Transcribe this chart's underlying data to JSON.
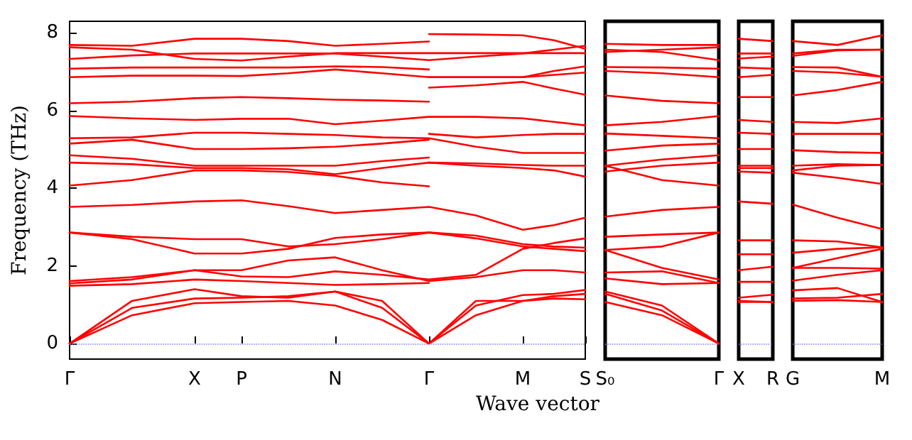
{
  "chart_data": [
    {
      "type": "line",
      "xlabel": "Wave vector",
      "ylabel": "Frequency (THz)",
      "color": "#ff0000",
      "line_style": "solid",
      "ylim": [
        -0.4,
        8.3
      ],
      "yticks": [
        0,
        2,
        4,
        6,
        8
      ],
      "categories": [
        "Γ",
        null,
        null,
        null,
        null,
        null,
        null,
        null,
        "X",
        null,
        null,
        "P",
        null,
        null,
        null,
        null,
        null,
        "N",
        null,
        null,
        null,
        null,
        null,
        "Γ",
        null,
        null,
        null,
        null,
        null,
        "M",
        null,
        null,
        null,
        "S"
      ],
      "ref_lines": [
        {
          "axis": "y",
          "value": 0,
          "color": "#8080ff",
          "line_style": "dotted"
        }
      ],
      "series": [
        {
          "values": [
            7.69,
            null,
            null,
            null,
            7.67,
            null,
            null,
            null,
            7.85,
            null,
            null,
            7.85,
            null,
            null,
            7.79,
            null,
            null,
            7.67,
            null,
            null,
            7.72,
            null,
            null,
            7.78,
            null,
            null,
            null,
            null,
            null,
            null,
            null,
            null,
            null,
            null
          ]
        },
        {
          "values": [
            7.63,
            null,
            null,
            null,
            7.57,
            null,
            null,
            null,
            7.33,
            null,
            null,
            7.29,
            null,
            null,
            7.39,
            null,
            null,
            7.48,
            null,
            null,
            7.48,
            null,
            null,
            7.48,
            null,
            null,
            7.48,
            null,
            null,
            7.48,
            null,
            7.48,
            null,
            7.48
          ]
        },
        {
          "values": [
            7.33,
            null,
            null,
            null,
            7.42,
            null,
            null,
            null,
            7.47,
            null,
            null,
            7.47,
            null,
            null,
            7.47,
            null,
            null,
            7.47,
            null,
            null,
            7.39,
            null,
            null,
            7.3,
            null,
            null,
            7.39,
            null,
            null,
            7.47,
            null,
            7.57,
            null,
            7.67
          ]
        },
        {
          "values": [
            7.08,
            null,
            null,
            null,
            7.11,
            null,
            null,
            null,
            7.11,
            null,
            null,
            7.11,
            null,
            null,
            7.11,
            null,
            null,
            7.14,
            null,
            null,
            7.12,
            null,
            null,
            7.06,
            null,
            null,
            null,
            null,
            null,
            null,
            null,
            null,
            null,
            null
          ]
        },
        {
          "values": [
            6.86,
            null,
            null,
            null,
            6.9,
            null,
            null,
            null,
            6.9,
            null,
            null,
            6.89,
            null,
            null,
            6.96,
            null,
            null,
            7.06,
            null,
            null,
            6.96,
            null,
            null,
            6.86,
            null,
            null,
            6.86,
            null,
            null,
            6.86,
            null,
            7.02,
            null,
            7.14
          ]
        },
        {
          "values": [
            6.19,
            null,
            null,
            null,
            6.23,
            null,
            null,
            null,
            6.32,
            null,
            null,
            6.35,
            null,
            null,
            6.32,
            null,
            null,
            6.28,
            null,
            null,
            6.26,
            null,
            null,
            6.23,
            null,
            null,
            null,
            null,
            null,
            null,
            null,
            null,
            null,
            null
          ]
        },
        {
          "values": [
            5.86,
            null,
            null,
            null,
            5.8,
            null,
            null,
            null,
            5.76,
            null,
            null,
            5.79,
            null,
            null,
            5.79,
            null,
            null,
            5.65,
            null,
            null,
            5.74,
            null,
            null,
            5.84,
            null,
            null,
            5.84,
            null,
            null,
            5.8,
            null,
            5.71,
            null,
            5.62
          ]
        },
        {
          "values": [
            5.29,
            null,
            null,
            null,
            5.31,
            null,
            null,
            null,
            5.43,
            null,
            null,
            5.43,
            null,
            null,
            5.4,
            null,
            null,
            5.37,
            null,
            null,
            5.31,
            null,
            null,
            5.29,
            null,
            null,
            5.07,
            null,
            null,
            4.91,
            null,
            4.91,
            null,
            4.91
          ]
        },
        {
          "values": [
            5.15,
            null,
            null,
            null,
            5.25,
            null,
            null,
            null,
            5.01,
            null,
            null,
            5.01,
            null,
            null,
            5.03,
            null,
            null,
            5.07,
            null,
            null,
            5.15,
            null,
            null,
            5.25,
            null,
            null,
            null,
            null,
            null,
            null,
            null,
            null,
            null,
            null
          ]
        },
        {
          "values": [
            4.85,
            null,
            null,
            null,
            4.76,
            null,
            null,
            null,
            4.58,
            null,
            null,
            4.58,
            null,
            null,
            4.58,
            null,
            null,
            4.58,
            null,
            null,
            4.7,
            null,
            null,
            4.79,
            null,
            null,
            null,
            null,
            null,
            null,
            null,
            null,
            null,
            null
          ]
        },
        {
          "values": [
            4.66,
            null,
            null,
            null,
            4.62,
            null,
            null,
            null,
            4.52,
            null,
            null,
            4.52,
            null,
            null,
            4.49,
            null,
            null,
            4.36,
            null,
            null,
            4.52,
            null,
            null,
            4.66,
            null,
            null,
            4.64,
            null,
            null,
            4.6,
            null,
            4.58,
            null,
            4.58
          ]
        },
        {
          "values": [
            4.07,
            null,
            null,
            null,
            4.21,
            null,
            null,
            null,
            4.46,
            null,
            null,
            4.46,
            null,
            null,
            4.42,
            null,
            null,
            4.32,
            null,
            null,
            4.15,
            null,
            null,
            4.05,
            null,
            null,
            null,
            null,
            null,
            null,
            null,
            null,
            null,
            null
          ]
        },
        {
          "values": [
            3.52,
            null,
            null,
            null,
            3.57,
            null,
            null,
            null,
            3.66,
            null,
            null,
            3.69,
            null,
            null,
            3.54,
            null,
            null,
            3.36,
            null,
            null,
            3.44,
            null,
            null,
            3.52,
            null,
            null,
            3.3,
            null,
            null,
            2.93,
            null,
            3.05,
            null,
            3.24
          ]
        },
        {
          "values": [
            2.86,
            null,
            null,
            null,
            2.75,
            null,
            null,
            null,
            2.69,
            null,
            null,
            2.69,
            null,
            null,
            2.5,
            null,
            null,
            2.56,
            null,
            null,
            2.69,
            null,
            null,
            2.86,
            null,
            null,
            2.71,
            null,
            null,
            2.5,
            null,
            2.44,
            null,
            2.38
          ]
        },
        {
          "values": [
            2.86,
            null,
            null,
            null,
            2.69,
            null,
            null,
            null,
            2.32,
            null,
            null,
            2.32,
            null,
            null,
            2.44,
            null,
            null,
            2.72,
            null,
            null,
            2.81,
            null,
            null,
            2.86,
            null,
            null,
            2.78,
            null,
            null,
            2.56,
            null,
            2.5,
            null,
            2.47
          ]
        },
        {
          "values": [
            1.61,
            null,
            null,
            null,
            1.71,
            null,
            null,
            null,
            1.89,
            null,
            null,
            1.89,
            null,
            null,
            2.14,
            null,
            null,
            2.22,
            null,
            null,
            1.89,
            null,
            null,
            1.61,
            null,
            null,
            1.71,
            null,
            null,
            1.89,
            null,
            1.89,
            null,
            1.83
          ]
        },
        {
          "values": [
            1.55,
            null,
            null,
            null,
            1.65,
            null,
            null,
            null,
            1.89,
            null,
            null,
            1.73,
            null,
            null,
            1.71,
            null,
            null,
            1.86,
            null,
            null,
            1.77,
            null,
            null,
            1.65,
            null,
            null,
            1.77,
            null,
            null,
            2.44,
            null,
            2.59,
            null,
            2.71
          ]
        },
        {
          "values": [
            1.49,
            null,
            null,
            null,
            1.53,
            null,
            null,
            null,
            1.65,
            null,
            null,
            1.61,
            null,
            null,
            1.56,
            null,
            null,
            1.51,
            null,
            null,
            1.53,
            null,
            null,
            1.56,
            null,
            null,
            null,
            null,
            null,
            null,
            null,
            null,
            null,
            null
          ]
        },
        {
          "values": [
            0,
            null,
            null,
            null,
            1.1,
            null,
            null,
            null,
            1.4,
            null,
            null,
            1.22,
            null,
            null,
            1.18,
            null,
            null,
            1.34,
            null,
            null,
            1.1,
            null,
            null,
            0,
            null,
            null,
            0.98,
            null,
            null,
            1.25,
            null,
            1.28,
            null,
            1.38
          ]
        },
        {
          "values": [
            0,
            null,
            null,
            null,
            0.92,
            null,
            null,
            null,
            1.16,
            null,
            null,
            1.18,
            null,
            null,
            1.22,
            null,
            null,
            1.34,
            null,
            null,
            0.92,
            null,
            null,
            0,
            null,
            null,
            1.1,
            null,
            null,
            1.1,
            null,
            1.16,
            null,
            1.14
          ]
        },
        {
          "values": [
            0,
            null,
            null,
            null,
            0.73,
            null,
            null,
            null,
            1.04,
            null,
            null,
            1.07,
            null,
            null,
            1.1,
            null,
            null,
            0.98,
            null,
            null,
            0.61,
            null,
            null,
            0,
            null,
            null,
            0.73,
            null,
            null,
            1.1,
            null,
            1.22,
            null,
            1.28
          ]
        },
        {
          "values": [
            null,
            null,
            null,
            null,
            null,
            null,
            null,
            null,
            null,
            null,
            null,
            null,
            null,
            null,
            null,
            null,
            null,
            null,
            null,
            null,
            null,
            null,
            null,
            7.97,
            null,
            null,
            7.96,
            null,
            null,
            7.94,
            null,
            7.81,
            null,
            7.59
          ]
        },
        {
          "values": [
            null,
            null,
            null,
            null,
            null,
            null,
            null,
            null,
            null,
            null,
            null,
            null,
            null,
            null,
            null,
            null,
            null,
            null,
            null,
            null,
            null,
            null,
            null,
            6.86,
            null,
            null,
            6.86,
            null,
            null,
            6.86,
            null,
            6.92,
            null,
            6.98
          ]
        },
        {
          "values": [
            null,
            null,
            null,
            null,
            null,
            null,
            null,
            null,
            null,
            null,
            null,
            null,
            null,
            null,
            null,
            null,
            null,
            null,
            null,
            null,
            null,
            null,
            null,
            6.59,
            null,
            null,
            6.65,
            null,
            null,
            6.74,
            null,
            6.57,
            null,
            6.41
          ]
        },
        {
          "values": [
            null,
            null,
            null,
            null,
            null,
            null,
            null,
            null,
            null,
            null,
            null,
            null,
            null,
            null,
            null,
            null,
            null,
            null,
            null,
            null,
            null,
            null,
            null,
            5.4,
            null,
            null,
            5.31,
            null,
            null,
            5.37,
            null,
            5.4,
            null,
            5.4
          ]
        },
        {
          "values": [
            null,
            null,
            null,
            null,
            null,
            null,
            null,
            null,
            null,
            null,
            null,
            null,
            null,
            null,
            null,
            null,
            null,
            null,
            null,
            null,
            null,
            null,
            null,
            4.66,
            null,
            null,
            4.58,
            null,
            null,
            4.52,
            null,
            4.46,
            null,
            4.3
          ]
        }
      ]
    },
    {
      "type": "line",
      "color": "#ff0000",
      "line_style": "solid",
      "tick_labels": "x",
      "ylim": [
        -0.4,
        8.3
      ],
      "yticks": [
        0,
        2,
        4,
        6,
        8
      ],
      "categories": [
        "S₀",
        null,
        "Γ"
      ],
      "ref_lines": [
        {
          "axis": "y",
          "value": 0,
          "color": "#8080ff",
          "line_style": "dotted"
        }
      ],
      "series": [
        {
          "values": [
            7.72,
            7.69,
            7.69
          ]
        },
        {
          "values": [
            7.57,
            7.51,
            7.3
          ]
        },
        {
          "values": [
            7.51,
            7.57,
            7.63
          ]
        },
        {
          "values": [
            7.12,
            7.11,
            7.08
          ]
        },
        {
          "values": [
            7.02,
            6.96,
            6.86
          ]
        },
        {
          "values": [
            6.39,
            6.25,
            6.19
          ]
        },
        {
          "values": [
            5.62,
            5.71,
            5.86
          ]
        },
        {
          "values": [
            5.41,
            5.35,
            5.29
          ]
        },
        {
          "values": [
            4.97,
            5.1,
            5.15
          ]
        },
        {
          "values": [
            4.58,
            4.74,
            4.85
          ]
        },
        {
          "values": [
            4.43,
            4.58,
            4.66
          ]
        },
        {
          "values": [
            4.58,
            4.21,
            4.07
          ]
        },
        {
          "values": [
            3.27,
            3.44,
            3.52
          ]
        },
        {
          "values": [
            2.75,
            2.81,
            2.86
          ]
        },
        {
          "values": [
            2.41,
            2.5,
            2.86
          ]
        },
        {
          "values": [
            2.41,
            1.95,
            1.65
          ]
        },
        {
          "values": [
            1.83,
            1.86,
            1.56
          ]
        },
        {
          "values": [
            1.68,
            1.53,
            1.56
          ]
        },
        {
          "values": [
            1.34,
            0.98,
            0
          ]
        },
        {
          "values": [
            1.07,
            0.73,
            0
          ]
        },
        {
          "values": [
            1.28,
            0.85,
            0
          ]
        }
      ]
    },
    {
      "type": "line",
      "color": "#ff0000",
      "line_style": "solid",
      "tick_labels": "x",
      "ylim": [
        -0.4,
        8.3
      ],
      "yticks": [
        0,
        2,
        4,
        6,
        8
      ],
      "categories": [
        "X",
        "R"
      ],
      "ref_lines": [
        {
          "axis": "y",
          "value": 0,
          "color": "#8080ff",
          "line_style": "dotted"
        }
      ],
      "series": [
        {
          "values": [
            7.85,
            7.79
          ]
        },
        {
          "values": [
            7.47,
            7.47
          ]
        },
        {
          "values": [
            7.34,
            7.39
          ]
        },
        {
          "values": [
            7.11,
            7.08
          ]
        },
        {
          "values": [
            6.86,
            6.92
          ]
        },
        {
          "values": [
            6.35,
            6.35
          ]
        },
        {
          "values": [
            5.76,
            5.71
          ]
        },
        {
          "values": [
            5.43,
            5.4
          ]
        },
        {
          "values": [
            5.01,
            5.01
          ]
        },
        {
          "values": [
            4.58,
            4.58
          ]
        },
        {
          "values": [
            4.52,
            4.52
          ]
        },
        {
          "values": [
            4.43,
            4.4
          ]
        },
        {
          "values": [
            3.66,
            3.6
          ]
        },
        {
          "values": [
            2.66,
            2.66
          ]
        },
        {
          "values": [
            2.3,
            2.3
          ]
        },
        {
          "values": [
            1.89,
            1.98
          ]
        },
        {
          "values": [
            1.59,
            1.59
          ]
        },
        {
          "values": [
            1.18,
            1.26
          ]
        },
        {
          "values": [
            1.1,
            1.07
          ]
        },
        {
          "values": [
            1.07,
            1.07
          ]
        }
      ]
    },
    {
      "type": "line",
      "color": "#ff0000",
      "line_style": "solid",
      "tick_labels": "x",
      "ylim": [
        -0.4,
        8.3
      ],
      "yticks": [
        0,
        2,
        4,
        6,
        8
      ],
      "categories": [
        "G",
        null,
        "M"
      ],
      "ref_lines": [
        {
          "axis": "y",
          "value": 0,
          "color": "#8080ff",
          "line_style": "dotted"
        }
      ],
      "series": [
        {
          "values": [
            7.79,
            7.69,
            7.94
          ]
        },
        {
          "values": [
            7.47,
            7.57,
            7.57
          ]
        },
        {
          "values": [
            7.41,
            7.55,
            7.57
          ]
        },
        {
          "values": [
            7.12,
            7.11,
            6.87
          ]
        },
        {
          "values": [
            7.02,
            6.98,
            6.87
          ]
        },
        {
          "values": [
            6.39,
            6.53,
            6.74
          ]
        },
        {
          "values": [
            5.71,
            5.68,
            5.8
          ]
        },
        {
          "values": [
            5.4,
            5.4,
            5.4
          ]
        },
        {
          "values": [
            4.98,
            4.93,
            4.91
          ]
        },
        {
          "values": [
            4.58,
            4.62,
            4.6
          ]
        },
        {
          "values": [
            4.46,
            4.58,
            4.6
          ]
        },
        {
          "values": [
            4.4,
            4.27,
            4.11
          ]
        },
        {
          "values": [
            3.58,
            3.24,
            2.95
          ]
        },
        {
          "values": [
            2.66,
            2.63,
            2.48
          ]
        },
        {
          "values": [
            2.34,
            2.44,
            2.48
          ]
        },
        {
          "values": [
            1.95,
            2.2,
            2.44
          ]
        },
        {
          "values": [
            1.95,
            1.95,
            1.93
          ]
        },
        {
          "values": [
            1.62,
            1.77,
            1.89
          ]
        },
        {
          "values": [
            1.37,
            1.43,
            1.07
          ]
        },
        {
          "values": [
            1.16,
            1.18,
            1.28
          ]
        },
        {
          "values": [
            1.1,
            1.12,
            1.07
          ]
        }
      ]
    }
  ]
}
